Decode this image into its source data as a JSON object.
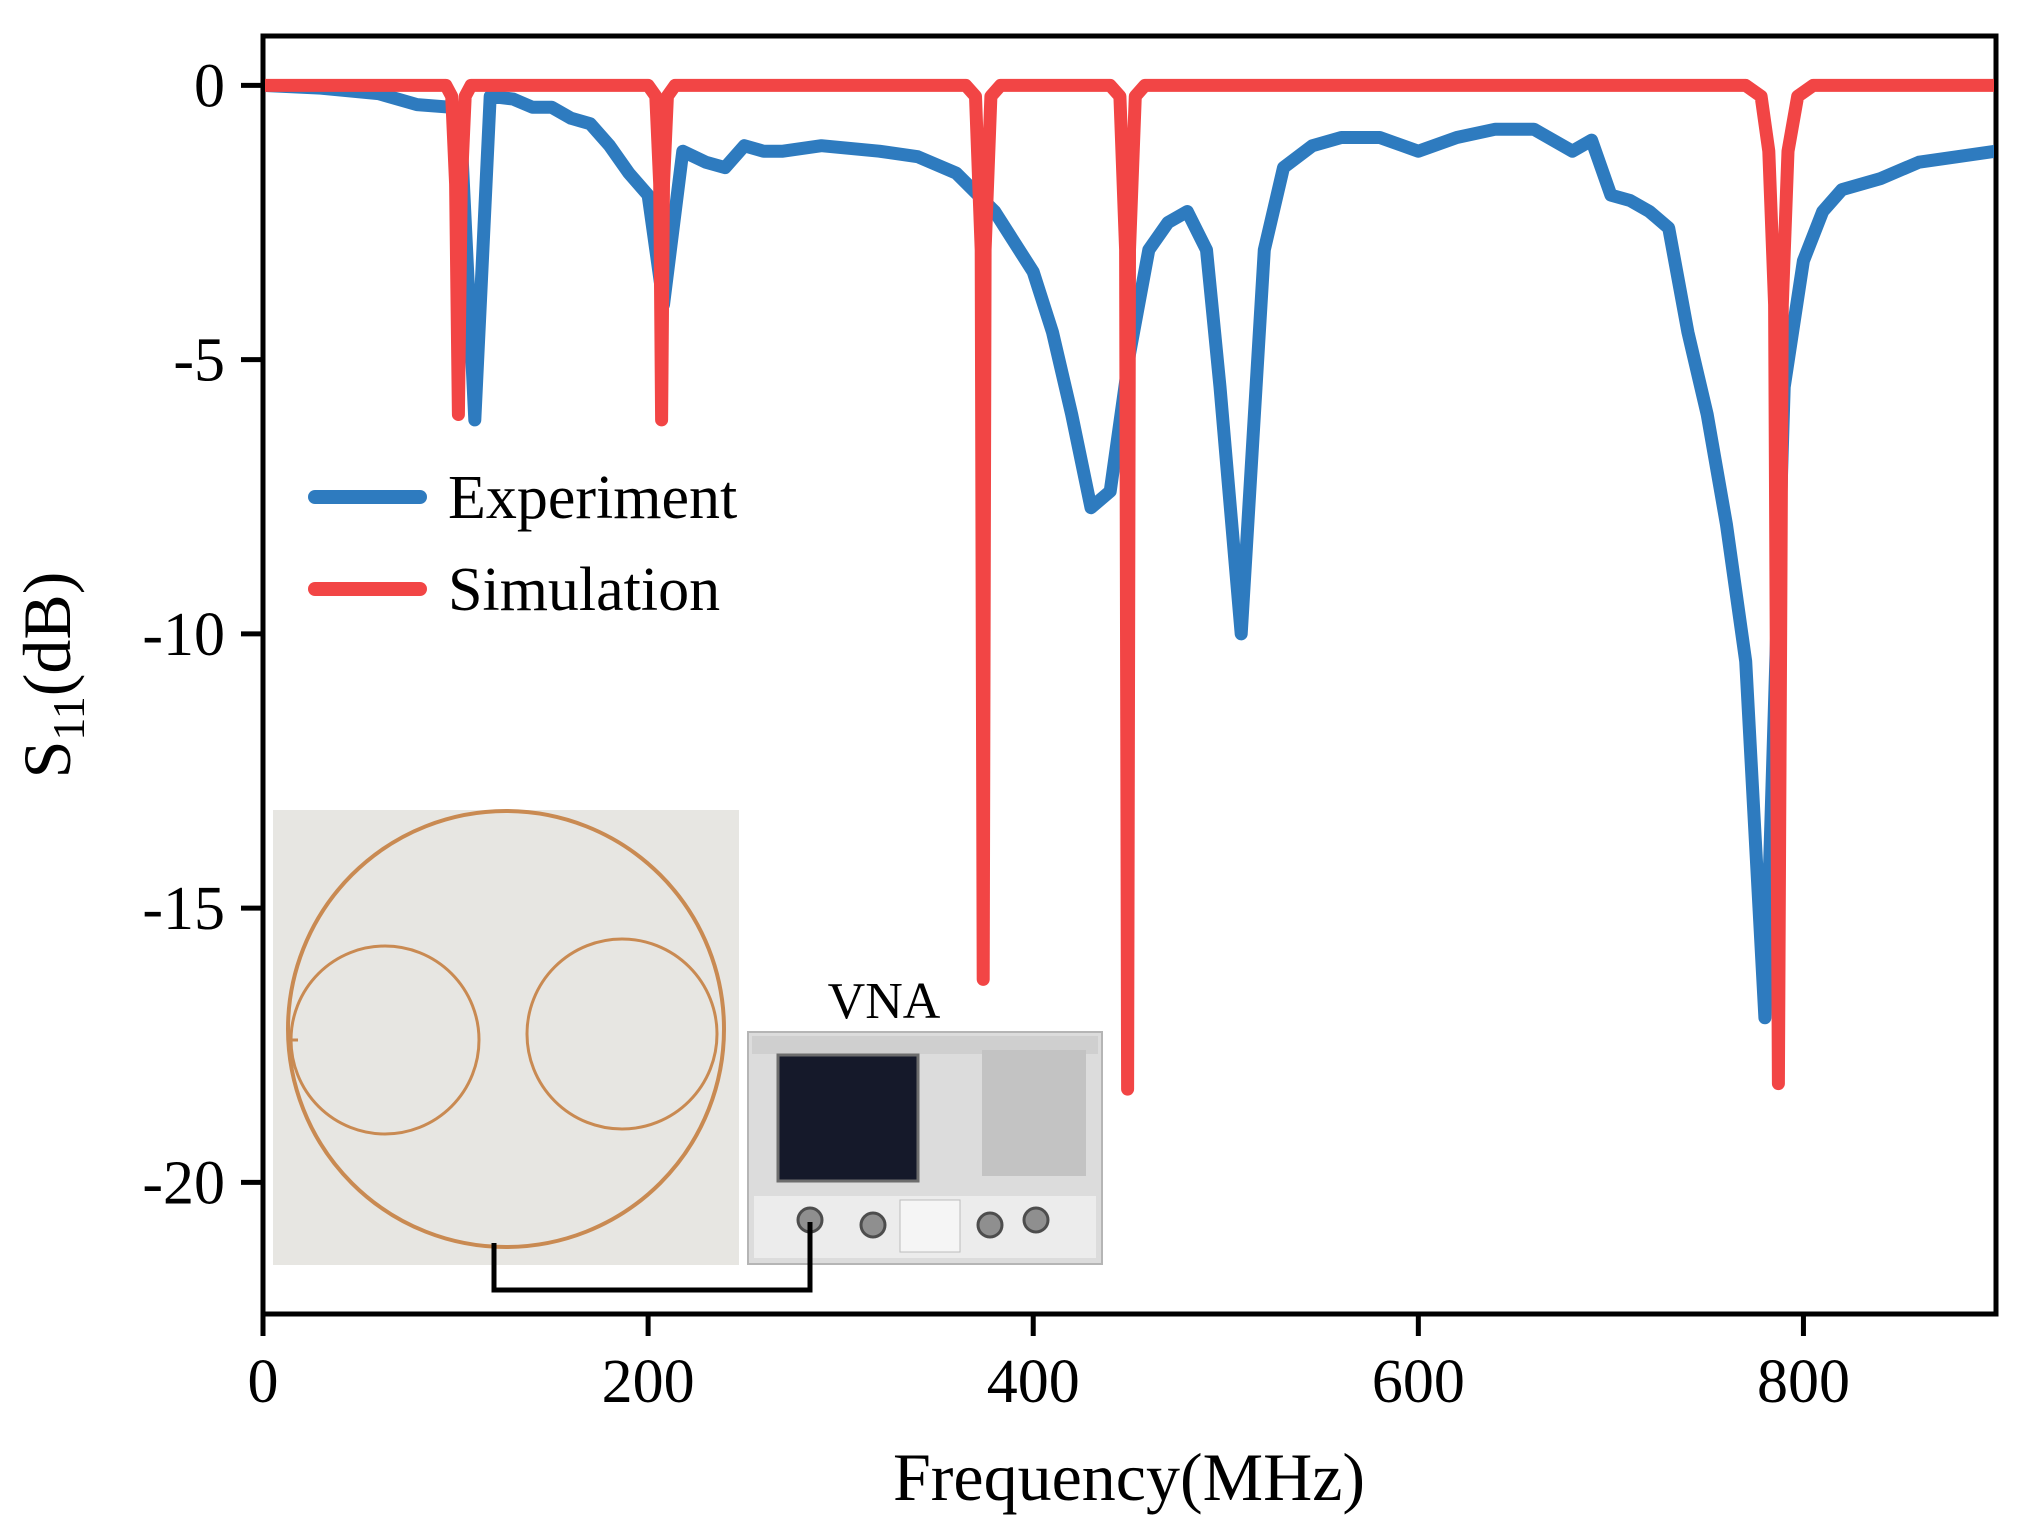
{
  "chart_data": {
    "type": "line",
    "xlabel": "Frequency(MHz)",
    "ylabel_main": "S",
    "ylabel_sub": "11",
    "ylabel_unit": "(dB)",
    "xlim": [
      0,
      900
    ],
    "ylim": [
      -22.4,
      0.9
    ],
    "x_ticks": [
      0,
      200,
      400,
      600,
      800
    ],
    "y_ticks": [
      0,
      -5,
      -10,
      -15,
      -20
    ],
    "x_tick_labels": [
      "0",
      "200",
      "400",
      "600",
      "800"
    ],
    "y_tick_labels": [
      "0",
      "-5",
      "-10",
      "-15",
      "-20"
    ],
    "grid": false,
    "legend_position": "center-left",
    "series": [
      {
        "name": "Experiment",
        "color": "#2e7bbf",
        "points": [
          [
            0,
            0
          ],
          [
            30,
            -0.05
          ],
          [
            60,
            -0.15
          ],
          [
            80,
            -0.35
          ],
          [
            98,
            -0.4
          ],
          [
            103,
            -1.0
          ],
          [
            110,
            -6.1
          ],
          [
            118,
            -0.2
          ],
          [
            130,
            -0.25
          ],
          [
            140,
            -0.4
          ],
          [
            150,
            -0.4
          ],
          [
            160,
            -0.6
          ],
          [
            170,
            -0.7
          ],
          [
            180,
            -1.1
          ],
          [
            190,
            -1.6
          ],
          [
            200,
            -2.0
          ],
          [
            208,
            -4.0
          ],
          [
            218,
            -1.2
          ],
          [
            230,
            -1.4
          ],
          [
            240,
            -1.5
          ],
          [
            250,
            -1.1
          ],
          [
            260,
            -1.2
          ],
          [
            270,
            -1.2
          ],
          [
            290,
            -1.1
          ],
          [
            320,
            -1.2
          ],
          [
            340,
            -1.3
          ],
          [
            360,
            -1.6
          ],
          [
            380,
            -2.3
          ],
          [
            400,
            -3.4
          ],
          [
            410,
            -4.5
          ],
          [
            420,
            -6.0
          ],
          [
            430,
            -7.7
          ],
          [
            440,
            -7.4
          ],
          [
            450,
            -4.9
          ],
          [
            460,
            -3.0
          ],
          [
            470,
            -2.5
          ],
          [
            480,
            -2.3
          ],
          [
            490,
            -3.0
          ],
          [
            497,
            -5.5
          ],
          [
            508,
            -10.0
          ],
          [
            520,
            -3.0
          ],
          [
            530,
            -1.5
          ],
          [
            545,
            -1.1
          ],
          [
            560,
            -0.95
          ],
          [
            580,
            -0.95
          ],
          [
            600,
            -1.2
          ],
          [
            620,
            -0.95
          ],
          [
            640,
            -0.8
          ],
          [
            660,
            -0.8
          ],
          [
            680,
            -1.2
          ],
          [
            690,
            -1.0
          ],
          [
            700,
            -2.0
          ],
          [
            710,
            -2.1
          ],
          [
            720,
            -2.3
          ],
          [
            730,
            -2.6
          ],
          [
            740,
            -4.5
          ],
          [
            750,
            -6.0
          ],
          [
            760,
            -8.0
          ],
          [
            770,
            -10.5
          ],
          [
            780,
            -17.0
          ],
          [
            790,
            -5.5
          ],
          [
            800,
            -3.2
          ],
          [
            810,
            -2.3
          ],
          [
            820,
            -1.9
          ],
          [
            840,
            -1.7
          ],
          [
            860,
            -1.4
          ],
          [
            880,
            -1.3
          ],
          [
            900,
            -1.2
          ]
        ]
      },
      {
        "name": "Simulation",
        "color": "#f24545",
        "points": [
          [
            0,
            0
          ],
          [
            95,
            0
          ],
          [
            98,
            -0.2
          ],
          [
            100,
            -1.8
          ],
          [
            101.5,
            -6.0
          ],
          [
            103,
            -1.8
          ],
          [
            105,
            -0.2
          ],
          [
            108,
            0
          ],
          [
            200,
            0
          ],
          [
            204,
            -0.2
          ],
          [
            206,
            -1.8
          ],
          [
            207,
            -6.1
          ],
          [
            208,
            -1.8
          ],
          [
            210,
            -0.2
          ],
          [
            214,
            0
          ],
          [
            365,
            0
          ],
          [
            370,
            -0.2
          ],
          [
            373,
            -3.0
          ],
          [
            374,
            -16.3
          ],
          [
            375,
            -3.0
          ],
          [
            378,
            -0.2
          ],
          [
            383,
            0
          ],
          [
            440,
            0
          ],
          [
            445,
            -0.2
          ],
          [
            448,
            -3.0
          ],
          [
            449,
            -18.3
          ],
          [
            450,
            -3.0
          ],
          [
            453,
            -0.2
          ],
          [
            458,
            0
          ],
          [
            770,
            0
          ],
          [
            778,
            -0.2
          ],
          [
            782,
            -1.2
          ],
          [
            785,
            -4.0
          ],
          [
            787,
            -18.2
          ],
          [
            789,
            -4.0
          ],
          [
            792,
            -1.2
          ],
          [
            797,
            -0.2
          ],
          [
            805,
            0
          ],
          [
            900,
            0
          ]
        ]
      }
    ],
    "inset": {
      "device_label": "VNA"
    }
  }
}
